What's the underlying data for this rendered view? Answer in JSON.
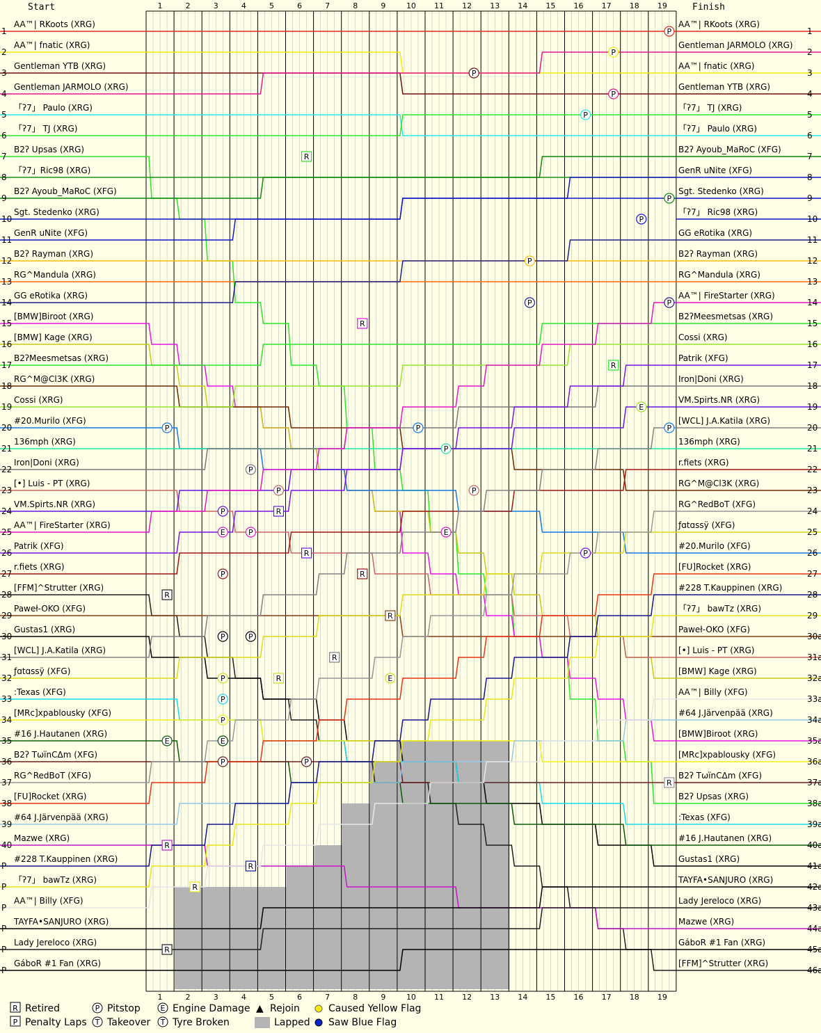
{
  "chart_data": {
    "type": "line",
    "title": "",
    "header_start": "Start",
    "header_finish": "Finish",
    "laps": [
      "1",
      "2",
      "3",
      "4",
      "5",
      "6",
      "7",
      "8",
      "9",
      "10",
      "11",
      "12",
      "13",
      "14",
      "15",
      "16",
      "17",
      "18",
      "19"
    ],
    "start_positions": [
      "1",
      "2",
      "3",
      "4",
      "5",
      "6",
      "7",
      "8",
      "9",
      "10",
      "11",
      "12",
      "13",
      "14",
      "15",
      "16",
      "17",
      "18",
      "19",
      "20",
      "21",
      "22",
      "23",
      "24",
      "25",
      "26",
      "27",
      "28",
      "29",
      "30",
      "31",
      "32",
      "33",
      "34",
      "35",
      "36",
      "37",
      "38",
      "39",
      "40",
      "P",
      "P",
      "P",
      "P",
      "P",
      "P"
    ],
    "finish_positions": [
      "1",
      "2",
      "3",
      "4",
      "5",
      "6",
      "7",
      "8",
      "9",
      "10",
      "11",
      "12",
      "13",
      "14",
      "15",
      "16",
      "17",
      "18",
      "19",
      "20",
      "21",
      "22",
      "23",
      "24",
      "25",
      "26",
      "27",
      "28",
      "29",
      "30a",
      "31a",
      "32a",
      "33a",
      "34a",
      "35a",
      "36a",
      "37a",
      "38a",
      "39a",
      "40a",
      "41a",
      "42a",
      "43a",
      "44a",
      "45a",
      "46a"
    ],
    "start_grid": [
      "AA™| RKoots (XRG)",
      "AA™| fnatic (XRG)",
      "Gentleman YTB (XRG)",
      "Gentleman JARMOLO (XRG)",
      "「ʔ7」 Paulo (XRG)",
      "「ʔ7」  TJ (XRG)",
      "B2ʔ Upsas (XRG)",
      "「ʔ7」Ric98 (XRG)",
      "B2ʔ Ayoub_MaRoC (XFG)",
      "Sgt. Stedenko (XRG)",
      "GenR uNite (XFG)",
      "B2ʔ Rayman (XRG)",
      "RG^Mandula (XRG)",
      "GG eRotika (XRG)",
      "[BMW]Biroot (XRG)",
      "[BMW] Kage (XRG)",
      "B2ʔMeesmetsas (XRG)",
      "RG^M@Cl3K (XRG)",
      "Cossi (XRG)",
      "#20.Murilo (XFG)",
      "136mph (XRG)",
      "Iron|Doni (XRG)",
      "[•] Luis - PT (XRG)",
      "VM.Spirts.NR (XRG)",
      "AA™| FireStarter (XRG)",
      "Patrik (XFG)",
      "r.fiets (XRG)",
      "[FFM]^Strutter (XRG)",
      "Paweł-OKO (XFG)",
      "Gustas1 (XRG)",
      "[WCL] J.A.Katila (XRG)",
      "ƒɑtɑssÿ (XFG)",
      ":Texas (XFG)",
      "[MRc]xpablousky (XFG)",
      "#16 J.Hautanen (XRG)",
      "B2ʔ TωïnCΔm (XFG)",
      "RG^RedBoT (XFG)",
      "[FU]Rocket (XRG)",
      "#64 J.Järvenpää (XRG)",
      "Mazwe (XRG)",
      "#228 T.Kauppinen (XRG)",
      "「ʔ7」 bawTz (XRG)",
      "AA™| Billy (XFG)",
      "TAYFA•SANJURO (XRG)",
      "Lady Jereloco (XRG)",
      "GáboR #1 Fan (XRG)"
    ],
    "finish_order": [
      "AA™| RKoots (XRG)",
      "Gentleman JARMOLO (XRG)",
      "AA™| fnatic (XRG)",
      "Gentleman YTB (XRG)",
      "「ʔ7」  TJ (XRG)",
      "「ʔ7」 Paulo (XRG)",
      "B2ʔ Ayoub_MaRoC (XFG)",
      "GenR uNite (XFG)",
      "Sgt. Stedenko (XRG)",
      "「ʔ7」 Ric98 (XRG)",
      "GG eRotika (XRG)",
      "B2ʔ Rayman (XRG)",
      "RG^Mandula (XRG)",
      "AA™| FireStarter (XRG)",
      "B2ʔMeesmetsas (XRG)",
      "Cossi (XRG)",
      "Patrik (XFG)",
      "Iron|Doni (XRG)",
      "VM.Spirts.NR (XRG)",
      "[WCL] J.A.Katila (XRG)",
      "136mph (XRG)",
      "r.fiets (XRG)",
      "RG^M@Cl3K (XRG)",
      "RG^RedBoT (XFG)",
      "ƒɑtɑssÿ (XFG)",
      "#20.Murilo (XFG)",
      "[FU]Rocket (XRG)",
      "#228 T.Kauppinen (XRG)",
      "「ʔ7」 bawTz (XRG)",
      "Paweł-OKO (XFG)",
      "[•] Luis - PT (XRG)",
      "[BMW] Kage (XRG)",
      "AA™| Billy (XFG)",
      "#64 J.Järvenpää (XRG)",
      "[BMW]Biroot (XRG)",
      "[MRc]xpablousky (XFG)",
      "B2ʔ TωïnCΔm (XFG)",
      "B2ʔ Upsas (XRG)",
      ":Texas (XFG)",
      "#16 J.Hautanen (XRG)",
      "Gustas1 (XRG)",
      "TAYFA•SANJURO (XRG)",
      "Lady Jereloco (XRG)",
      "Mazwe (XRG)",
      "GáboR #1 Fan (XRG)",
      "[FFM]^Strutter (XRG)"
    ],
    "legend": [
      {
        "mark": "R",
        "label": "Retired"
      },
      {
        "mark": "P",
        "label": "Penalty Laps"
      },
      {
        "mark": "P",
        "label": "Pitstop"
      },
      {
        "mark": "T",
        "label": "Takeover"
      },
      {
        "mark": "E",
        "label": "Engine Damage"
      },
      {
        "mark": "T",
        "label": "Tyre Broken"
      },
      {
        "mark": "▲",
        "label": "Rejoin"
      },
      {
        "mark": "",
        "label": "Lapped"
      },
      {
        "mark": "",
        "label": "Caused Yellow Flag"
      },
      {
        "mark": "",
        "label": "Saw Blue Flag"
      }
    ],
    "lapped_laps_per_column": [
      0,
      4,
      4,
      4,
      4,
      5,
      6,
      8,
      10,
      11,
      11,
      11,
      11,
      0,
      0,
      0,
      0,
      0,
      0
    ],
    "colors": {
      "background": "#ffffe7",
      "grid": "#000000",
      "subgrid": "#b0b0b0",
      "lapped": "#b4b4b4",
      "yellow_flag": "#ffee00",
      "blue_flag": "#0022cc",
      "palette": [
        "#e8281e",
        "#eeee00",
        "#6e0f0f",
        "#e8148c",
        "#28e8e8",
        "#28e628",
        "#28e628",
        "#189618",
        "#0a8c0a",
        "#1414c8",
        "#1414c8",
        "#ffbb00",
        "#ff6a00",
        "#1e1e8c",
        "#e614e6",
        "#c8c814",
        "#28e628",
        "#6e2800",
        "#96e628",
        "#1478e6",
        "#1ee6a0",
        "#787878",
        "#c86464",
        "#6414e6",
        "#e614c8",
        "#7814e6",
        "#a01414",
        "#1e1e1e",
        "#8c3c14",
        "#000000",
        "#828282",
        "#dcdc14",
        "#14dcf0",
        "#f0f014",
        "#0a5a0a",
        "#6e1e1e",
        "#969696",
        "#e83214",
        "#96c8e6",
        "#c814c8",
        "#14148c",
        "#e6e614",
        "#e6e6e6",
        "#000000",
        "#1e1e1e",
        "#000000"
      ]
    },
    "events": [
      {
        "driver_start": 1,
        "lap": 19,
        "type": "pitstop"
      },
      {
        "driver_start": 2,
        "lap": 17,
        "type": "pitstop"
      },
      {
        "driver_start": 4,
        "lap": 17,
        "type": "pitstop"
      },
      {
        "driver_start": 5,
        "lap": 16,
        "type": "pitstop"
      },
      {
        "driver_start": 3,
        "lap": 12,
        "type": "pitstop"
      },
      {
        "driver_start": 7,
        "lap": 6,
        "type": "retired"
      },
      {
        "driver_start": 9,
        "lap": 19,
        "type": "pitstop"
      },
      {
        "driver_start": 10,
        "lap": 18,
        "type": "pitstop"
      },
      {
        "driver_start": 14,
        "lap": 19,
        "type": "pitstop"
      },
      {
        "driver_start": 14,
        "lap": 14,
        "type": "pitstop"
      },
      {
        "driver_start": 15,
        "lap": 8,
        "type": "retired"
      },
      {
        "driver_start": 12,
        "lap": 14,
        "type": "pitstop"
      },
      {
        "driver_start": 25,
        "lap": 11,
        "type": "engine"
      },
      {
        "driver_start": 17,
        "lap": 17,
        "type": "pitstop"
      },
      {
        "driver_start": 17,
        "lap": 17,
        "type": "retired"
      },
      {
        "driver_start": 19,
        "lap": 18,
        "type": "engine"
      },
      {
        "driver_start": 26,
        "lap": 16,
        "type": "pitstop"
      },
      {
        "driver_start": 20,
        "lap": 10,
        "type": "pitstop"
      },
      {
        "driver_start": 21,
        "lap": 11,
        "type": "pitstop"
      },
      {
        "driver_start": 20,
        "lap": 19,
        "type": "pitstop"
      },
      {
        "driver_start": 20,
        "lap": 1,
        "type": "pitstop"
      },
      {
        "driver_start": 23,
        "lap": 12,
        "type": "pitstop"
      },
      {
        "driver_start": 22,
        "lap": 4,
        "type": "pitstop"
      },
      {
        "driver_start": 23,
        "lap": 5,
        "type": "pitstop"
      },
      {
        "driver_start": 24,
        "lap": 3,
        "type": "pitstop"
      },
      {
        "driver_start": 24,
        "lap": 5,
        "type": "retired"
      },
      {
        "driver_start": 37,
        "lap": 19,
        "type": "retired"
      },
      {
        "driver_start": 25,
        "lap": 3,
        "type": "engine"
      },
      {
        "driver_start": 25,
        "lap": 4,
        "type": "pitstop"
      },
      {
        "driver_start": 26,
        "lap": 6,
        "type": "retired"
      },
      {
        "driver_start": 27,
        "lap": 3,
        "type": "pitstop"
      },
      {
        "driver_start": 27,
        "lap": 8,
        "type": "retired"
      },
      {
        "driver_start": 28,
        "lap": 1,
        "type": "retired"
      },
      {
        "driver_start": 29,
        "lap": 9,
        "type": "retired"
      },
      {
        "driver_start": 30,
        "lap": 3,
        "type": "pitstop"
      },
      {
        "driver_start": 30,
        "lap": 4,
        "type": "pitstop"
      },
      {
        "driver_start": 31,
        "lap": 7,
        "type": "retired"
      },
      {
        "driver_start": 32,
        "lap": 3,
        "type": "pitstop"
      },
      {
        "driver_start": 32,
        "lap": 5,
        "type": "retired"
      },
      {
        "driver_start": 33,
        "lap": 3,
        "type": "pitstop"
      },
      {
        "driver_start": 34,
        "lap": 3,
        "type": "pitstop"
      },
      {
        "driver_start": 35,
        "lap": 3,
        "type": "pitstop"
      },
      {
        "driver_start": 35,
        "lap": 1,
        "type": "engine"
      },
      {
        "driver_start": 35,
        "lap": 3,
        "type": "engine"
      },
      {
        "driver_start": 36,
        "lap": 3,
        "type": "pitstop"
      },
      {
        "driver_start": 36,
        "lap": 6,
        "type": "pitstop"
      },
      {
        "driver_start": 32,
        "lap": 9,
        "type": "engine"
      },
      {
        "driver_start": 40,
        "lap": 1,
        "type": "retired"
      },
      {
        "driver_start": 41,
        "lap": 4,
        "type": "retired"
      },
      {
        "driver_start": 42,
        "lap": 2,
        "type": "retired"
      },
      {
        "driver_start": 45,
        "lap": 1,
        "type": "retired"
      }
    ],
    "grid": true
  }
}
